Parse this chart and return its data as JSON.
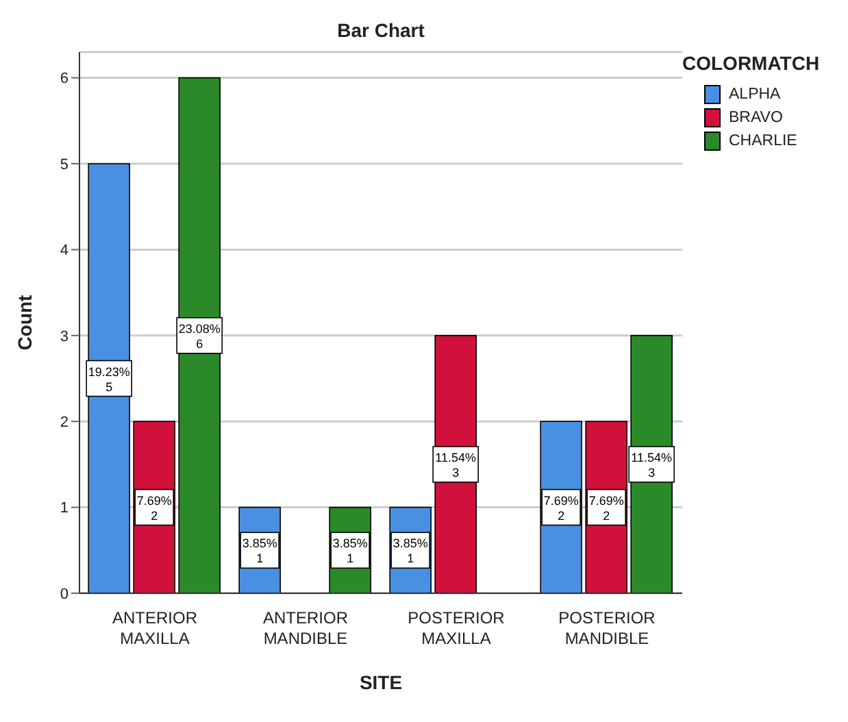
{
  "chart_data": {
    "type": "bar",
    "title": "Bar Chart",
    "xlabel": "SITE",
    "ylabel": "Count",
    "legend_title": "COLORMATCH",
    "categories": [
      "ANTERIOR MAXILLA",
      "ANTERIOR MANDIBLE",
      "POSTERIOR MAXILLA",
      "POSTERIOR MANDIBLE"
    ],
    "series": [
      {
        "name": "ALPHA",
        "color": "#4a90e2",
        "values": [
          5,
          1,
          1,
          2
        ],
        "value_labels": [
          "19.23%\n5",
          "3.85%\n1",
          "3.85%\n1",
          "7.69%\n2"
        ]
      },
      {
        "name": "BRAVO",
        "color": "#d2103c",
        "values": [
          2,
          0,
          3,
          2
        ],
        "value_labels": [
          "7.69%\n2",
          null,
          "11.54%\n3",
          "7.69%\n2"
        ]
      },
      {
        "name": "CHARLIE",
        "color": "#2a8a2a",
        "values": [
          6,
          1,
          0,
          3
        ],
        "value_labels": [
          "23.08%\n6",
          "3.85%\n1",
          null,
          "11.54%\n3"
        ]
      }
    ],
    "ylim": [
      0,
      6.3
    ],
    "yticks": [
      0,
      1,
      2,
      3,
      4,
      5,
      6
    ],
    "grid": "y",
    "legend": "top right"
  }
}
